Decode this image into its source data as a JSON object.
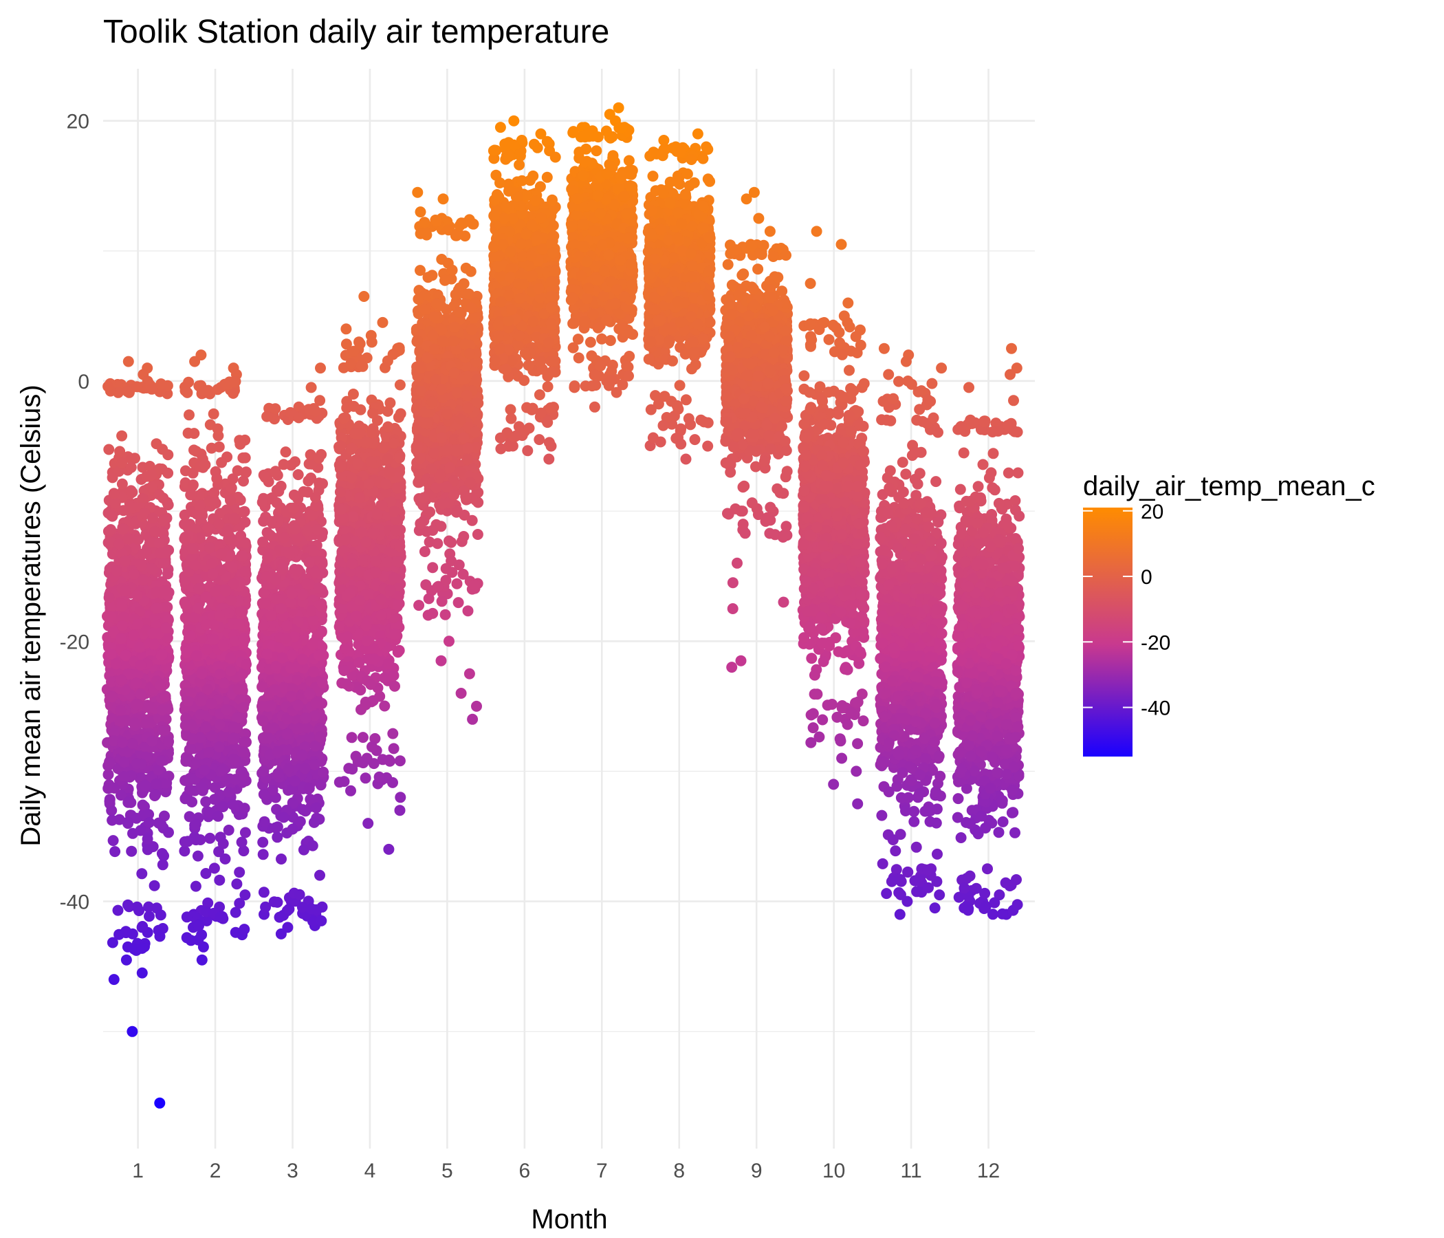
{
  "chart_data": {
    "type": "scatter",
    "title": "Toolik Station daily air temperature",
    "xlabel": "Month",
    "ylabel": "Daily mean air temperatures (Celsius)",
    "xlim": [
      0.55,
      12.6
    ],
    "ylim": [
      -59,
      24
    ],
    "x_ticks": [
      1,
      2,
      3,
      4,
      5,
      6,
      7,
      8,
      9,
      10,
      11,
      12
    ],
    "x_tick_labels": [
      "1",
      "2",
      "3",
      "4",
      "5",
      "6",
      "7",
      "8",
      "9",
      "10",
      "11",
      "12"
    ],
    "y_ticks": [
      -40,
      -20,
      0,
      20
    ],
    "y_tick_labels": [
      "-40",
      "-20",
      "0",
      "20"
    ],
    "jitter_width": 0.4,
    "grid": true,
    "legend": {
      "title": "daily_air_temp_mean_c",
      "position": "right",
      "type": "colorbar",
      "range": [
        -55,
        21
      ],
      "ticks": [
        20,
        0,
        -20,
        -40
      ],
      "tick_labels": [
        "20",
        "0",
        "-20",
        "-40"
      ],
      "color_low": "#1a00ff",
      "color_mid": "#c8398f",
      "color_high": "#ff8c00"
    },
    "months": [
      {
        "month": 1,
        "core_min": -40,
        "core_max": -1,
        "high_outliers": [
          1.5,
          1.0,
          0.5,
          -0.3
        ],
        "low_outliers": [
          -42,
          -43.5,
          -44.5,
          -45.5,
          -46,
          -50,
          -55.5
        ]
      },
      {
        "month": 2,
        "core_min": -40,
        "core_max": -1,
        "high_outliers": [
          2.0,
          1.5,
          1.0,
          0.5,
          -0.5
        ],
        "low_outliers": [
          -41,
          -42,
          -43,
          -43.5,
          -44.5
        ]
      },
      {
        "month": 3,
        "core_min": -39,
        "core_max": -3,
        "high_outliers": [
          1.0,
          -0.5,
          -1.5,
          -2.5
        ],
        "low_outliers": [
          -40,
          -41,
          -42,
          -42.5
        ]
      },
      {
        "month": 4,
        "core_min": -27,
        "core_max": 1,
        "high_outliers": [
          6.5,
          4.5,
          4.0,
          3.5,
          3.0
        ],
        "low_outliers": [
          -29,
          -30.5,
          -31.5,
          -32,
          -33,
          -34,
          -36
        ]
      },
      {
        "month": 5,
        "core_min": -14,
        "core_max": 11,
        "high_outliers": [
          14.5,
          14.0,
          13.0,
          12.5
        ],
        "low_outliers": [
          -16,
          -18,
          -20,
          -21.5,
          -22.5,
          -24,
          -25,
          -26
        ]
      },
      {
        "month": 6,
        "core_min": -2,
        "core_max": 17,
        "high_outliers": [
          20.0,
          19.5,
          19.0,
          18.5
        ],
        "low_outliers": [
          -3.5,
          -4.5,
          -5.0,
          -6.0
        ]
      },
      {
        "month": 7,
        "core_min": 2,
        "core_max": 18.5,
        "high_outliers": [
          21.0,
          20.5,
          20.0,
          19.5
        ],
        "low_outliers": [
          1.0,
          0.5,
          0.0,
          -0.5,
          -2.0
        ]
      },
      {
        "month": 8,
        "core_min": 0,
        "core_max": 17,
        "high_outliers": [
          19.0,
          18.5,
          18.0
        ],
        "low_outliers": [
          -3.0,
          -4.5,
          -5.0,
          -6.0
        ]
      },
      {
        "month": 9,
        "core_min": -8,
        "core_max": 9.5,
        "high_outliers": [
          14.5,
          14.0,
          12.5,
          11.5,
          10.5
        ],
        "low_outliers": [
          -10,
          -12,
          -14,
          -15.5,
          -17,
          -17.5,
          -21.5,
          -22
        ]
      },
      {
        "month": 10,
        "core_min": -24,
        "core_max": 2,
        "high_outliers": [
          11.5,
          10.5,
          7.5,
          6.0,
          5.0,
          4.5
        ],
        "low_outliers": [
          -26,
          -27.5,
          -29,
          -30,
          -31,
          -32.5
        ]
      },
      {
        "month": 11,
        "core_min": -36,
        "core_max": -4,
        "high_outliers": [
          2.5,
          2.0,
          1.5,
          1.0,
          0.5,
          0.0
        ],
        "low_outliers": [
          -37.5,
          -38.5,
          -39.5,
          -40,
          -40.5,
          -41
        ]
      },
      {
        "month": 12,
        "core_min": -38,
        "core_max": -4,
        "high_outliers": [
          2.5,
          1.0,
          0.5,
          -0.5,
          -1.5,
          -3.0
        ],
        "low_outliers": [
          -39,
          -39.5,
          -40,
          -40.5,
          -41
        ]
      }
    ]
  }
}
